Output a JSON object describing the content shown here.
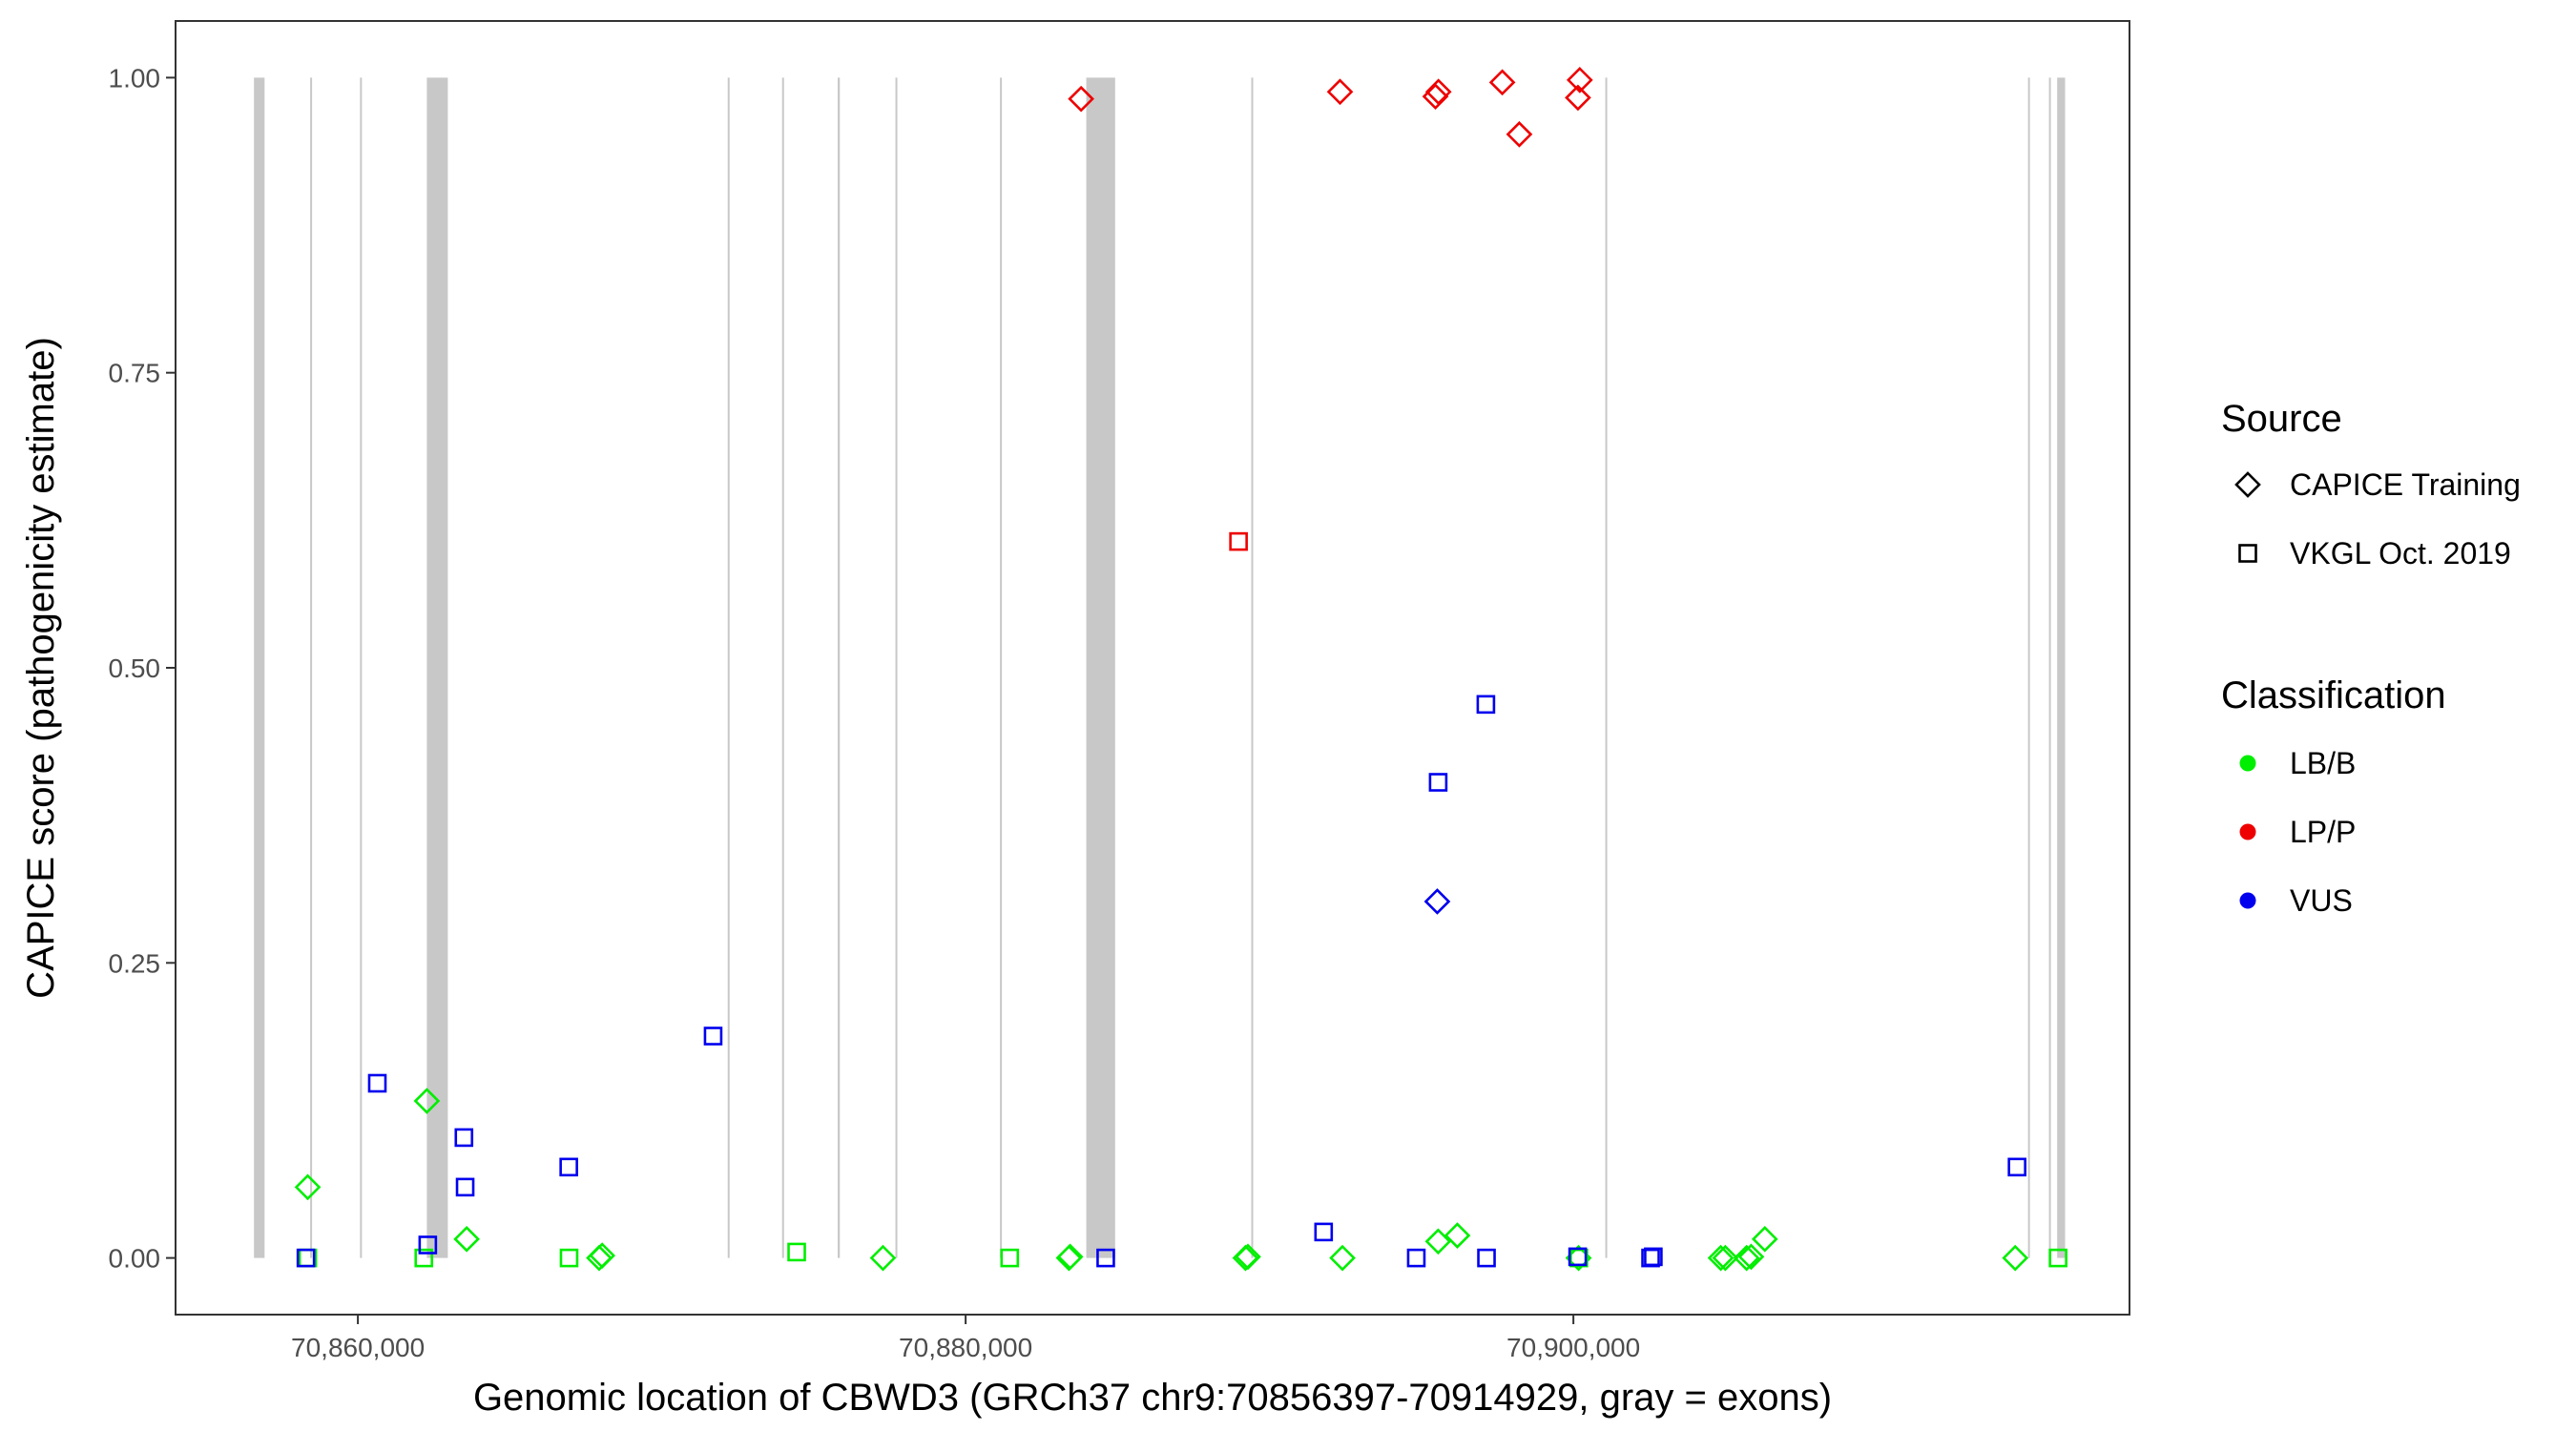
{
  "chart_data": {
    "type": "scatter",
    "xlabel": "Genomic location of CBWD3 (GRCh37 chr9:70856397-70914929, gray = exons)",
    "ylabel": "CAPICE score (pathogenicity estimate)",
    "xlim": [
      70854000,
      70918300
    ],
    "ylim": [
      -0.048,
      1.048
    ],
    "x_ticks": [
      70860000,
      70880000,
      70900000
    ],
    "x_tick_labels": [
      "70,860,000",
      "70,880,000",
      "70,900,000"
    ],
    "y_ticks": [
      0,
      0.25,
      0.5,
      0.75,
      1.0
    ],
    "y_tick_labels": [
      "0.00",
      "0.25",
      "0.50",
      "0.75",
      "1.00"
    ],
    "grid": false,
    "legend_position": "right",
    "exons": [
      [
        70856580,
        70856930
      ],
      [
        70858430,
        70858470
      ],
      [
        70860070,
        70860110
      ],
      [
        70862270,
        70862960
      ],
      [
        70872170,
        70872210
      ],
      [
        70873960,
        70874010
      ],
      [
        70875790,
        70875860
      ],
      [
        70877690,
        70877730
      ],
      [
        70881130,
        70881170
      ],
      [
        70883970,
        70884920
      ],
      [
        70889400,
        70889440
      ],
      [
        70901050,
        70901090
      ],
      [
        70914960,
        70915010
      ],
      [
        70915650,
        70915690
      ],
      [
        70915920,
        70916180
      ]
    ],
    "legends": {
      "source": {
        "title": "Source",
        "items": [
          {
            "label": "CAPICE Training",
            "shape": "diamond"
          },
          {
            "label": "VKGL Oct. 2019",
            "shape": "square"
          }
        ]
      },
      "classification": {
        "title": "Classification",
        "items": [
          {
            "label": "LB/B",
            "color": "#00ee00"
          },
          {
            "label": "LP/P",
            "color": "#ee0000"
          },
          {
            "label": "VUS",
            "color": "#0000ee"
          }
        ]
      }
    },
    "series": [
      {
        "name": "CAPICE Training",
        "classification": "LB/B",
        "shape": "diamond",
        "color": "#00ee00",
        "x": [
          70858350,
          70862270,
          70863580,
          70867940,
          70868040,
          70877280,
          70883400,
          70883440,
          70889210,
          70889290,
          70892400,
          70895550,
          70896180,
          70900170,
          70904850,
          70905000,
          70905700,
          70905850,
          70906300,
          70914540
        ],
        "y": [
          0.06,
          0.133,
          0.016,
          0.0,
          0.002,
          0.0,
          0.0,
          0.001,
          0.0,
          0.001,
          0.0,
          0.014,
          0.019,
          0.0,
          0.0,
          0.0,
          0.0,
          0.001,
          0.016,
          0.0
        ]
      },
      {
        "name": "CAPICE Training",
        "classification": "LP/P",
        "shape": "diamond",
        "color": "#ee0000",
        "x": [
          70883800,
          70892320,
          70895460,
          70895560,
          70897660,
          70898220,
          70900150,
          70900210
        ],
        "y": [
          0.982,
          0.988,
          0.984,
          0.988,
          0.996,
          0.952,
          0.983,
          0.998
        ]
      },
      {
        "name": "CAPICE Training",
        "classification": "VUS",
        "shape": "diamond",
        "color": "#0000ee",
        "x": [
          70895520
        ],
        "y": [
          0.302
        ]
      },
      {
        "name": "VKGL Oct. 2019",
        "classification": "LB/B",
        "shape": "square",
        "color": "#00ee00",
        "x": [
          70858350,
          70862170,
          70866950,
          70874440,
          70881450,
          70900180,
          70915950
        ],
        "y": [
          0.0,
          0.0,
          0.0,
          0.005,
          0.0,
          0.0,
          0.0
        ]
      },
      {
        "name": "VKGL Oct. 2019",
        "classification": "LP/P",
        "shape": "square",
        "color": "#ee0000",
        "x": [
          70888980
        ],
        "y": [
          0.607
        ]
      },
      {
        "name": "VKGL Oct. 2019",
        "classification": "VUS",
        "shape": "square",
        "color": "#0000ee",
        "x": [
          70858290,
          70860640,
          70862300,
          70863490,
          70863530,
          70866940,
          70871690,
          70884610,
          70891780,
          70894830,
          70895550,
          70897120,
          70897140,
          70900140,
          70902540,
          70902630,
          70914600
        ],
        "y": [
          0.0,
          0.148,
          0.011,
          0.102,
          0.06,
          0.077,
          0.188,
          0.0,
          0.022,
          0.0,
          0.403,
          0.469,
          0.0,
          0.001,
          0.0,
          0.001,
          0.077
        ]
      }
    ]
  }
}
